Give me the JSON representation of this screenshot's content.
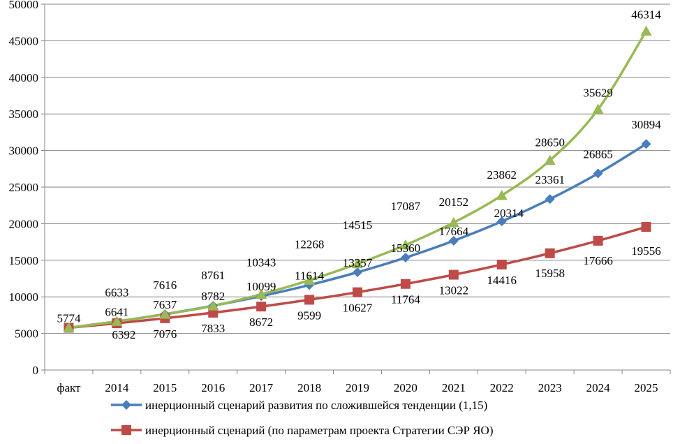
{
  "chart_data": {
    "type": "line",
    "categories": [
      "факт",
      "2014",
      "2015",
      "2016",
      "2017",
      "2018",
      "2019",
      "2020",
      "2021",
      "2022",
      "2023",
      "2024",
      "2025"
    ],
    "ylim": [
      0,
      50000
    ],
    "yticks": [
      0,
      5000,
      10000,
      15000,
      20000,
      25000,
      30000,
      35000,
      40000,
      45000,
      50000
    ],
    "grid": "horizontal",
    "legend_position": "bottom",
    "series": [
      {
        "name": "инерционный сценарий развития по сложившейся тенденции (1,15)",
        "color": "#4a7ebb",
        "marker": "diamond",
        "values": [
          5774,
          6641,
          7637,
          8782,
          10099,
          11614,
          13357,
          15360,
          17664,
          20314,
          23361,
          26865,
          30894
        ]
      },
      {
        "name": "инерционный сценарий (по параметрам проекта Стратегии СЭР ЯО)",
        "color": "#be4b48",
        "marker": "square",
        "values": [
          5774,
          6392,
          7076,
          7833,
          8672,
          9599,
          10627,
          11764,
          13022,
          14416,
          15958,
          17666,
          19556
        ]
      },
      {
        "name": "",
        "color": "#98b954",
        "marker": "triangle",
        "values": [
          5774,
          6633,
          7616,
          8761,
          10343,
          12268,
          14515,
          17087,
          20152,
          23862,
          28650,
          35629,
          46314
        ]
      }
    ]
  }
}
